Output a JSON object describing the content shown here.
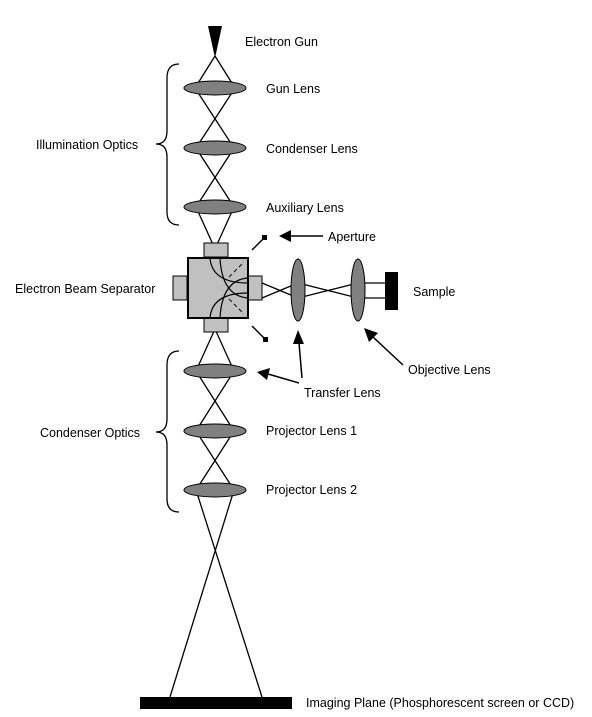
{
  "labels": {
    "electron_gun": "Electron Gun",
    "gun_lens": "Gun Lens",
    "condenser_lens": "Condenser Lens",
    "auxiliary_lens": "Auxiliary Lens",
    "aperture": "Aperture",
    "illumination_optics": "Illumination Optics",
    "electron_beam_separator": "Electron Beam Separator",
    "sample": "Sample",
    "objective_lens": "Objective Lens",
    "transfer_lens": "Transfer Lens",
    "condenser_optics": "Condenser Optics",
    "projector_lens_1": "Projector Lens 1",
    "projector_lens_2": "Projector Lens 2",
    "imaging_plane": "Imaging Plane (Phosphorescent screen or CCD)"
  },
  "colors": {
    "lens_fill": "#808080",
    "separator_fill": "#c0c0c0",
    "stroke": "#000000"
  }
}
